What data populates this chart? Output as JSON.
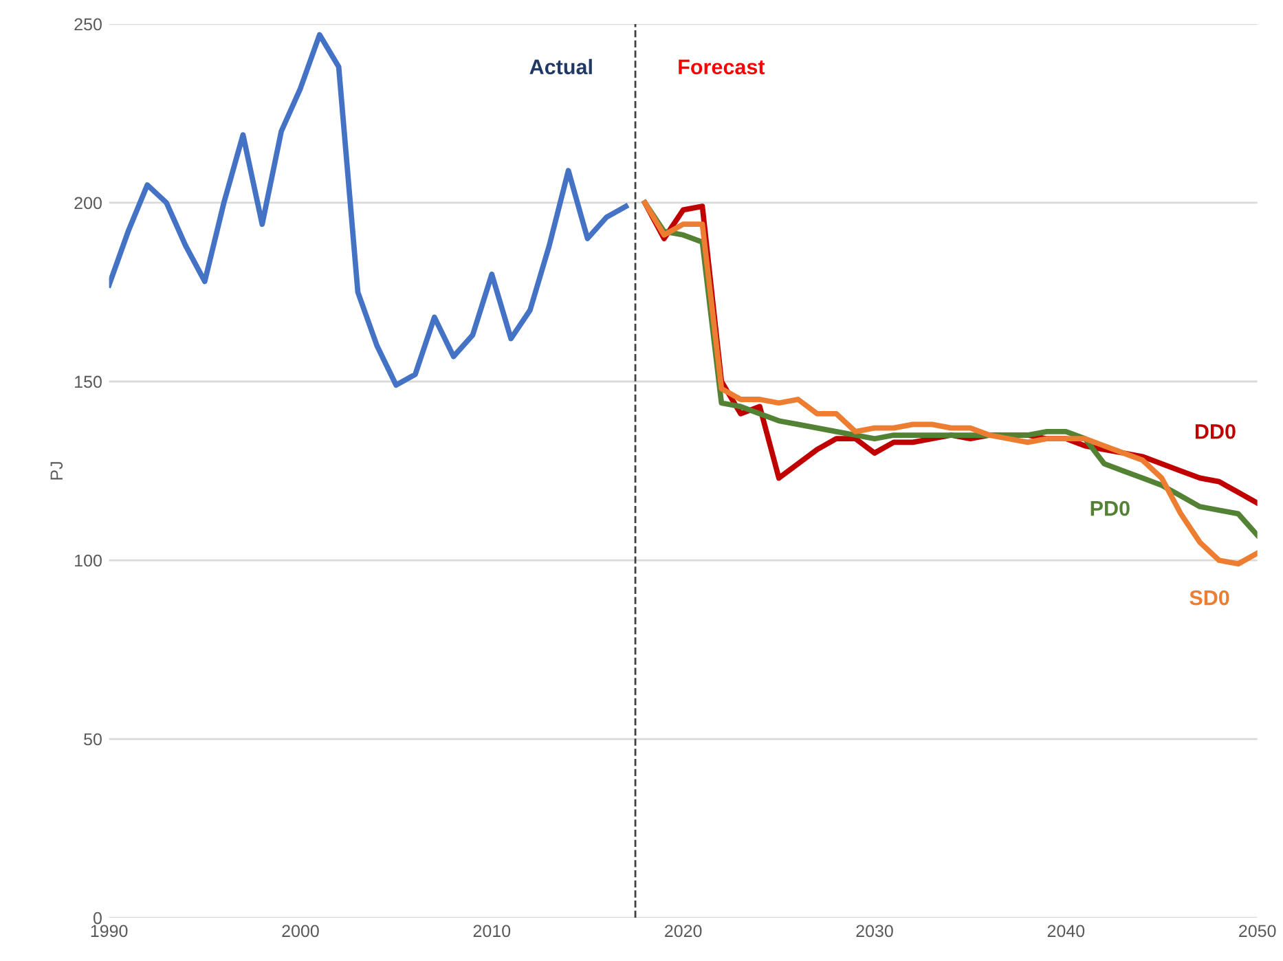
{
  "chart_data": {
    "type": "line",
    "ylabel": "PJ",
    "xlim": [
      1990,
      2050
    ],
    "xticks": [
      1990,
      2000,
      2010,
      2020,
      2030,
      2040,
      2050
    ],
    "ylim": [
      0,
      250
    ],
    "yticks": [
      0,
      50,
      100,
      150,
      200,
      250
    ],
    "grid": "y",
    "legend": false,
    "line_style": "solid",
    "marker": "none",
    "ref_lines": [
      {
        "axis": "x",
        "value": 2017.5,
        "color": "#404040",
        "line_style": "dashed"
      }
    ],
    "annotations": [
      "Actual",
      "Forecast"
    ],
    "series": [
      {
        "color": "#4472c4",
        "x": [
          1990,
          1991,
          1992,
          1993,
          1994,
          1995,
          1996,
          1997,
          1998,
          1999,
          2000,
          2001,
          2002,
          2003,
          2004,
          2005,
          2006,
          2007,
          2008,
          2009,
          2010,
          2011,
          2012,
          2013,
          2014,
          2015,
          2016,
          2017
        ],
        "values": [
          177,
          192,
          205,
          200,
          188,
          178,
          200,
          219,
          194,
          220,
          232,
          247,
          238,
          175,
          160,
          149,
          152,
          168,
          157,
          163,
          180,
          162,
          170,
          188,
          209,
          190,
          196,
          199
        ]
      },
      {
        "name": "DD0",
        "color": "#c00000",
        "x": [
          2018,
          2019,
          2020,
          2021,
          2022,
          2023,
          2024,
          2025,
          2026,
          2027,
          2028,
          2029,
          2030,
          2031,
          2032,
          2033,
          2034,
          2035,
          2036,
          2037,
          2038,
          2039,
          2040,
          2041,
          2042,
          2043,
          2044,
          2045,
          2046,
          2047,
          2048,
          2049,
          2050
        ],
        "values": [
          200,
          190,
          198,
          199,
          150,
          141,
          143,
          123,
          127,
          131,
          134,
          134,
          130,
          133,
          133,
          134,
          135,
          134,
          135,
          135,
          135,
          134,
          134,
          132,
          131,
          130,
          129,
          127,
          125,
          123,
          122,
          119,
          116
        ]
      },
      {
        "name": "PD0",
        "color": "#548235",
        "x": [
          2018,
          2019,
          2020,
          2021,
          2022,
          2023,
          2024,
          2025,
          2026,
          2027,
          2028,
          2029,
          2030,
          2031,
          2032,
          2033,
          2034,
          2035,
          2036,
          2037,
          2038,
          2039,
          2040,
          2041,
          2042,
          2043,
          2044,
          2045,
          2046,
          2047,
          2048,
          2049,
          2050
        ],
        "values": [
          200,
          192,
          191,
          189,
          144,
          143,
          141,
          139,
          138,
          137,
          136,
          135,
          134,
          135,
          135,
          135,
          135,
          135,
          135,
          135,
          135,
          136,
          136,
          134,
          127,
          125,
          123,
          121,
          118,
          115,
          114,
          113,
          107
        ]
      },
      {
        "name": "SD0",
        "color": "#ed7d31",
        "x": [
          2018,
          2019,
          2020,
          2021,
          2022,
          2023,
          2024,
          2025,
          2026,
          2027,
          2028,
          2029,
          2030,
          2031,
          2032,
          2033,
          2034,
          2035,
          2036,
          2037,
          2038,
          2039,
          2040,
          2041,
          2042,
          2043,
          2044,
          2045,
          2046,
          2047,
          2048,
          2049,
          2050
        ],
        "values": [
          200,
          191,
          194,
          194,
          148,
          145,
          145,
          144,
          145,
          141,
          141,
          136,
          137,
          137,
          138,
          138,
          137,
          137,
          135,
          134,
          133,
          134,
          134,
          134,
          132,
          130,
          128,
          123,
          113,
          105,
          100,
          99,
          102
        ]
      }
    ]
  }
}
